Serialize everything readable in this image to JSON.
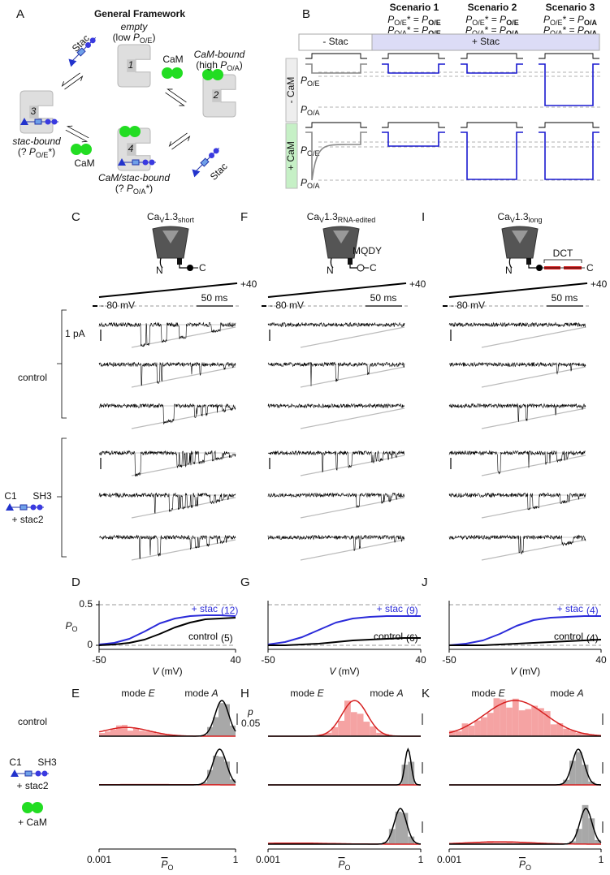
{
  "panel_a": {
    "label": "A",
    "title": "General Framework",
    "states": [
      {
        "number": "1",
        "name": "empty",
        "prefix": "(low ",
        "p": "P",
        "sub": "O/E",
        "suffix": ")"
      },
      {
        "number": "2",
        "name": "CaM-bound",
        "prefix": "(high ",
        "p": "P",
        "sub": "O/A",
        "suffix": ")"
      },
      {
        "number": "3",
        "name": "stac-bound",
        "prefix": "(? ",
        "p": "P",
        "sub": "O/E",
        "suffix": "*)"
      },
      {
        "number": "4",
        "name": "CaM/stac-bound",
        "prefix": "(? ",
        "p": "P",
        "sub": "O/A",
        "suffix": "*)"
      }
    ],
    "cam_labels": [
      "CaM",
      "CaM"
    ],
    "stac_labels": [
      "Stac",
      "Stac"
    ]
  },
  "panel_b": {
    "label": "B",
    "p": "P",
    "op": "* = ",
    "scenarios": [
      {
        "title": "Scenario 1",
        "rows": [
          {
            "lhs": "O/E",
            "rhs": "O/E"
          },
          {
            "lhs": "O/A",
            "rhs": "O/E"
          }
        ]
      },
      {
        "title": "Scenario 2",
        "rows": [
          {
            "lhs": "O/E",
            "rhs": "O/E"
          },
          {
            "lhs": "O/A",
            "rhs": "O/A"
          }
        ]
      },
      {
        "title": "Scenario 3",
        "rows": [
          {
            "lhs": "O/E",
            "rhs": "O/A"
          },
          {
            "lhs": "O/A",
            "rhs": "O/A"
          }
        ]
      }
    ],
    "minus_stac": "- Stac",
    "plus_stac": "+ Stac",
    "minus_cam": "- CaM",
    "plus_cam": "+ CaM",
    "levels": [
      {
        "p": "P",
        "sub": "O/E"
      },
      {
        "p": "P",
        "sub": "O/A"
      },
      {
        "p": "P",
        "sub": "O/E"
      },
      {
        "p": "P",
        "sub": "O/A"
      }
    ]
  },
  "channels": [
    {
      "label": "C",
      "ca": "Ca",
      "v": "V",
      "num": "1.3",
      "variant": "short",
      "n": "N",
      "c": "C",
      "end": "+40",
      "hold": "- 80 mV",
      "scale": "50 ms"
    },
    {
      "label": "F",
      "ca": "Ca",
      "v": "V",
      "num": "1.3",
      "variant": "RNA-edited",
      "n": "N",
      "c": "C",
      "tag": "MQDY",
      "end": "+40",
      "hold": "- 80 mV",
      "scale": "50 ms"
    },
    {
      "label": "I",
      "ca": "Ca",
      "v": "V",
      "num": "1.3",
      "variant": "long",
      "n": "N",
      "c": "C",
      "tag": "DCT",
      "end": "+40",
      "hold": "- 80 mV",
      "scale": "50 ms"
    }
  ],
  "trace_labels": {
    "scale": "1 pA",
    "control": "control",
    "c1": "C1",
    "sh3": "SH3",
    "stac2": "+ stac2"
  },
  "chart_data": [
    {
      "type": "line",
      "label": "D",
      "x": [
        -50,
        -40,
        -30,
        -20,
        -10,
        0,
        10,
        20,
        30,
        40
      ],
      "xlim": [
        -50,
        40
      ],
      "xticks": [
        -50,
        40
      ],
      "ylim": [
        0,
        0.5
      ],
      "yticks": [
        0,
        0.5
      ],
      "grid": true,
      "ylabel": "P",
      "ylabel_sub": "O",
      "xlabel_var": "V",
      "xlabel_unit": " (mV)",
      "series": [
        {
          "name": "+ stac",
          "n": "(12)",
          "color": "#2b2bd9",
          "values": [
            0.01,
            0.03,
            0.08,
            0.17,
            0.27,
            0.33,
            0.36,
            0.37,
            0.37,
            0.36
          ]
        },
        {
          "name": "control",
          "n": "(5)",
          "color": "#000000",
          "values": [
            0,
            0.01,
            0.03,
            0.07,
            0.14,
            0.22,
            0.28,
            0.32,
            0.33,
            0.34
          ]
        }
      ]
    },
    {
      "type": "line",
      "label": "G",
      "x": [
        -50,
        -40,
        -30,
        -20,
        -10,
        0,
        10,
        20,
        30,
        40
      ],
      "xlim": [
        -50,
        40
      ],
      "xticks": [
        -50,
        40
      ],
      "ylim": [
        0,
        0.5
      ],
      "grid": true,
      "xlabel_var": "V",
      "xlabel_unit": " (mV)",
      "series": [
        {
          "name": "+ stac",
          "n": "(9)",
          "color": "#2b2bd9",
          "values": [
            0.01,
            0.04,
            0.1,
            0.19,
            0.28,
            0.33,
            0.35,
            0.36,
            0.36,
            0.36
          ]
        },
        {
          "name": "control",
          "n": "(6)",
          "color": "#000000",
          "values": [
            0,
            0,
            0.01,
            0.02,
            0.04,
            0.06,
            0.07,
            0.08,
            0.09,
            0.09
          ]
        }
      ]
    },
    {
      "type": "line",
      "label": "J",
      "x": [
        -50,
        -40,
        -30,
        -20,
        -10,
        0,
        10,
        20,
        30,
        40
      ],
      "xlim": [
        -50,
        40
      ],
      "xticks": [
        -50,
        40
      ],
      "ylim": [
        0,
        0.5
      ],
      "grid": true,
      "xlabel_var": "V",
      "xlabel_unit": " (mV)",
      "series": [
        {
          "name": "+ stac",
          "n": "(4)",
          "color": "#2b2bd9",
          "values": [
            0,
            0.02,
            0.06,
            0.14,
            0.24,
            0.31,
            0.34,
            0.35,
            0.36,
            0.36
          ]
        },
        {
          "name": "control",
          "n": "(4)",
          "color": "#000000",
          "values": [
            0,
            0,
            0,
            0.01,
            0.02,
            0.03,
            0.04,
            0.05,
            0.06,
            0.07
          ]
        }
      ]
    }
  ],
  "histograms": {
    "row_labels": {
      "control": "control",
      "c1": "C1",
      "sh3": "SH3",
      "stac2": "+ stac2",
      "cam": "+ CaM"
    },
    "p_scale": {
      "p": "p",
      "value": "0.05"
    },
    "panels": [
      {
        "label": "E",
        "mode": "mode ",
        "e": "E",
        "a": "A",
        "xlim": [
          0.001,
          1
        ],
        "xticks": [
          0.001,
          1
        ],
        "log": true,
        "xlabel": "P",
        "xlabel_sub": "O"
      },
      {
        "label": "H",
        "mode": "mode ",
        "e": "E",
        "a": "A",
        "xlim": [
          0.001,
          1
        ],
        "xticks": [
          0.001,
          1
        ],
        "log": true,
        "xlabel": "P",
        "xlabel_sub": "O"
      },
      {
        "label": "K",
        "mode": "mode ",
        "e": "E",
        "a": "A",
        "xlim": [
          0.001,
          1
        ],
        "xticks": [
          0.001,
          1
        ],
        "log": true,
        "xlabel": "P",
        "xlabel_sub": "O"
      }
    ]
  }
}
